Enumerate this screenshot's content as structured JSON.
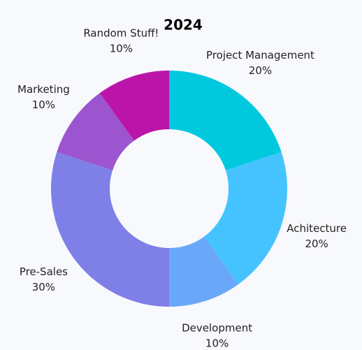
{
  "chart_data": {
    "type": "donut",
    "title": "2024",
    "categories": [
      "Project Management",
      "Achitecture",
      "Development",
      "Pre-Sales",
      "Marketing",
      "Random Stuff!"
    ],
    "values": [
      20,
      20,
      10,
      30,
      10,
      10
    ],
    "value_labels": [
      "20%",
      "20%",
      "10%",
      "30%",
      "10%",
      "10%"
    ],
    "colors": [
      "#00c9de",
      "#45c3ff",
      "#6aa7f8",
      "#7e80e7",
      "#9c55cf",
      "#bb14a8"
    ]
  }
}
